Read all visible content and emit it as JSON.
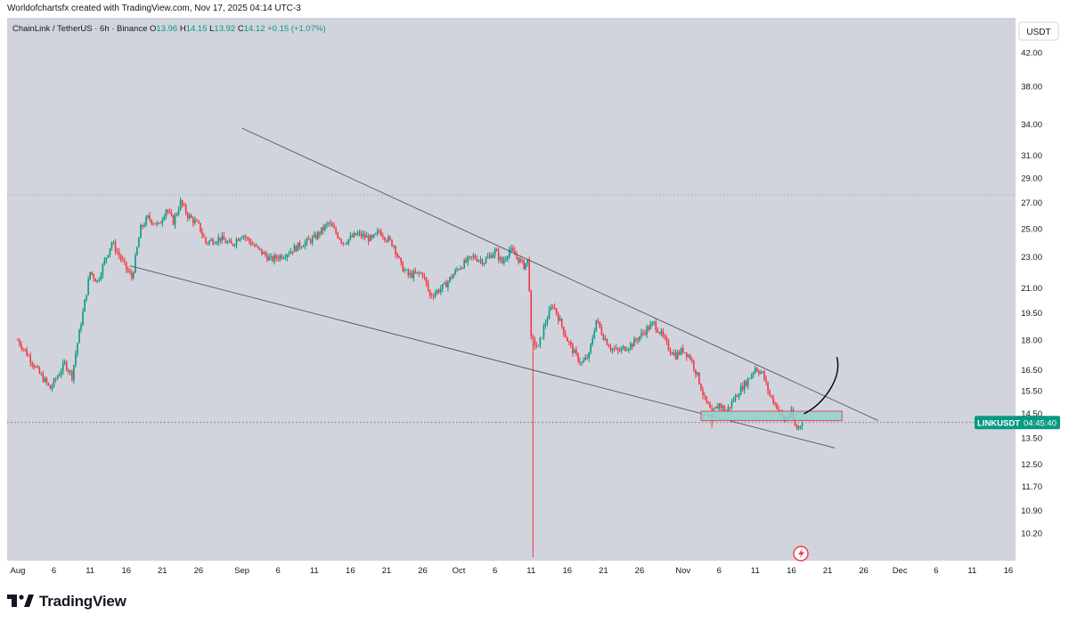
{
  "header": {
    "attribution": "Worldofchartsfx created with TradingView.com, Nov 17, 2025 04:14 UTC-3"
  },
  "legend": {
    "symbol": "ChainLink / TetherUS · 6h · Binance",
    "open_label": "O",
    "open": "13.96",
    "high_label": "H",
    "high": "14.15",
    "low_label": "L",
    "low": "13.92",
    "close_label": "C",
    "close": "14.12",
    "change": "+0.15 (+1.07%)"
  },
  "currency_button": "USDT",
  "price_badge": {
    "ticker": "LINKUSDT",
    "countdown": "04:45:40"
  },
  "brand": "TradingView",
  "colors": {
    "bg": "#d1d4dc",
    "up": "#089981",
    "down": "#f23645",
    "trendline": "#50535e",
    "zone_fill": "#8fd3cb",
    "zone_border": "#f23645",
    "text": "#131722",
    "badge": "#089981"
  },
  "chart_data": {
    "type": "candlestick",
    "title": "ChainLink / TetherUS · 6h · Binance",
    "xlabel": "",
    "ylabel": "",
    "y_scale": "log",
    "ylim": [
      9.4,
      46.5
    ],
    "y_ticks": [
      "42.00",
      "38.00",
      "34.00",
      "31.00",
      "29.00",
      "27.00",
      "25.00",
      "23.00",
      "21.00",
      "19.50",
      "18.00",
      "16.50",
      "15.50",
      "14.50",
      "13.50",
      "12.50",
      "11.70",
      "10.90",
      "10.20"
    ],
    "x_ticks": [
      "Aug",
      "6",
      "11",
      "16",
      "21",
      "26",
      "Sep",
      "6",
      "11",
      "16",
      "21",
      "26",
      "Oct",
      "6",
      "11",
      "16",
      "21",
      "26",
      "Nov",
      "6",
      "11",
      "16",
      "21",
      "26",
      "Dec",
      "6",
      "11",
      "16"
    ],
    "x_start": "2025-08-01",
    "x_end": "2025-12-17",
    "price_path": [
      {
        "d": 0,
        "p": 18.0
      },
      {
        "d": 3,
        "p": 16.3
      },
      {
        "d": 4.5,
        "p": 15.6
      },
      {
        "d": 6.5,
        "p": 16.8
      },
      {
        "d": 7.5,
        "p": 16.2
      },
      {
        "d": 9,
        "p": 19.5
      },
      {
        "d": 10,
        "p": 22.0
      },
      {
        "d": 11,
        "p": 21.4
      },
      {
        "d": 13,
        "p": 24.0
      },
      {
        "d": 15,
        "p": 22.2
      },
      {
        "d": 15.8,
        "p": 21.6
      },
      {
        "d": 17,
        "p": 25.0
      },
      {
        "d": 18,
        "p": 25.8
      },
      {
        "d": 19.5,
        "p": 25.2
      },
      {
        "d": 20.5,
        "p": 26.5
      },
      {
        "d": 21.5,
        "p": 25.5
      },
      {
        "d": 22.5,
        "p": 27.0
      },
      {
        "d": 23.5,
        "p": 26.0
      },
      {
        "d": 25,
        "p": 25.2
      },
      {
        "d": 26,
        "p": 24.0
      },
      {
        "d": 28,
        "p": 24.3
      },
      {
        "d": 29.5,
        "p": 23.8
      },
      {
        "d": 31,
        "p": 24.6
      },
      {
        "d": 33,
        "p": 23.6
      },
      {
        "d": 35,
        "p": 22.8
      },
      {
        "d": 37,
        "p": 23.2
      },
      {
        "d": 39,
        "p": 23.8
      },
      {
        "d": 41,
        "p": 24.3
      },
      {
        "d": 43,
        "p": 25.4
      },
      {
        "d": 45,
        "p": 24.0
      },
      {
        "d": 47,
        "p": 24.6
      },
      {
        "d": 49,
        "p": 24.2
      },
      {
        "d": 50,
        "p": 24.8
      },
      {
        "d": 52,
        "p": 23.8
      },
      {
        "d": 53,
        "p": 22.4
      },
      {
        "d": 54,
        "p": 21.8
      },
      {
        "d": 56,
        "p": 21.9
      },
      {
        "d": 57,
        "p": 20.5
      },
      {
        "d": 59,
        "p": 21.1
      },
      {
        "d": 61,
        "p": 22.3
      },
      {
        "d": 63,
        "p": 23.0
      },
      {
        "d": 64.5,
        "p": 22.7
      },
      {
        "d": 66,
        "p": 23.4
      },
      {
        "d": 67,
        "p": 22.6
      },
      {
        "d": 68,
        "p": 23.5
      },
      {
        "d": 69,
        "p": 23.0
      },
      {
        "d": 70,
        "p": 22.4
      },
      {
        "d": 70.6,
        "p": 22.8
      },
      {
        "d": 71,
        "p": 18.0
      },
      {
        "d": 72,
        "p": 17.6
      },
      {
        "d": 73,
        "p": 19.0
      },
      {
        "d": 74,
        "p": 20.0
      },
      {
        "d": 75,
        "p": 19.0
      },
      {
        "d": 76,
        "p": 18.0
      },
      {
        "d": 77,
        "p": 17.3
      },
      {
        "d": 78,
        "p": 16.8
      },
      {
        "d": 79,
        "p": 17.2
      },
      {
        "d": 80,
        "p": 19.1
      },
      {
        "d": 81,
        "p": 18.2
      },
      {
        "d": 82,
        "p": 17.6
      },
      {
        "d": 83,
        "p": 17.4
      },
      {
        "d": 85,
        "p": 17.8
      },
      {
        "d": 87,
        "p": 18.6
      },
      {
        "d": 88,
        "p": 18.9
      },
      {
        "d": 89,
        "p": 18.3
      },
      {
        "d": 90,
        "p": 17.6
      },
      {
        "d": 91,
        "p": 17.2
      },
      {
        "d": 92,
        "p": 17.5
      },
      {
        "d": 93,
        "p": 17.1
      },
      {
        "d": 94,
        "p": 16.2
      },
      {
        "d": 95,
        "p": 15.1
      },
      {
        "d": 96,
        "p": 14.5
      },
      {
        "d": 97,
        "p": 14.9
      },
      {
        "d": 98,
        "p": 14.6
      },
      {
        "d": 99,
        "p": 15.1
      },
      {
        "d": 100,
        "p": 15.6
      },
      {
        "d": 101,
        "p": 16.0
      },
      {
        "d": 102,
        "p": 16.6
      },
      {
        "d": 103,
        "p": 16.3
      },
      {
        "d": 104,
        "p": 15.3
      },
      {
        "d": 105,
        "p": 14.8
      },
      {
        "d": 106,
        "p": 14.2
      },
      {
        "d": 107,
        "p": 14.5
      },
      {
        "d": 107.6,
        "p": 13.85
      },
      {
        "d": 108,
        "p": 13.96
      },
      {
        "d": 108.5,
        "p": 14.12
      }
    ],
    "spike_low": {
      "d": 71.2,
      "p": 9.5
    },
    "spike_low_alt": {
      "d": 96,
      "p": 13.9
    },
    "trendlines": [
      {
        "name": "upper-trendline",
        "from": {
          "d": 31,
          "p": 33.6
        },
        "to": {
          "d": 119,
          "p": 14.2
        }
      },
      {
        "name": "lower-trendline",
        "from": {
          "d": 15.5,
          "p": 22.4
        },
        "to": {
          "d": 113,
          "p": 13.1
        }
      }
    ],
    "support_zone": {
      "d_from": 94.5,
      "d_to": 114,
      "p_low": 14.2,
      "p_high": 14.6
    },
    "projection": [
      {
        "d": 108.8,
        "p": 14.5
      },
      {
        "d": 111,
        "p": 14.85
      },
      {
        "d": 112.4,
        "p": 15.6
      },
      {
        "d": 113.3,
        "p": 17.1
      }
    ],
    "hline_upper": 27.6,
    "hline_current": 14.12
  }
}
